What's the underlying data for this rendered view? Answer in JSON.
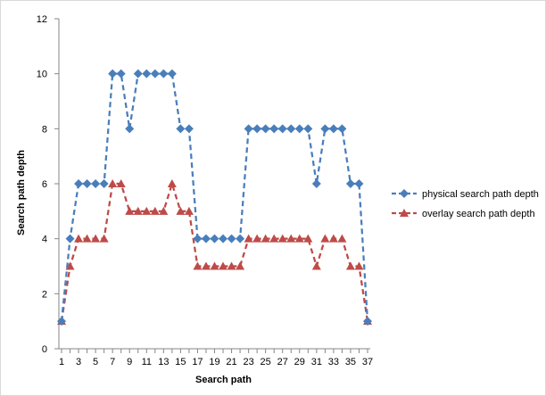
{
  "chart_data": {
    "type": "line",
    "title": "",
    "xlabel": "Search path",
    "ylabel": "Search path depth",
    "x": [
      1,
      2,
      3,
      4,
      5,
      6,
      7,
      8,
      9,
      10,
      11,
      12,
      13,
      14,
      15,
      16,
      17,
      18,
      19,
      20,
      21,
      22,
      23,
      24,
      25,
      26,
      27,
      28,
      29,
      30,
      31,
      32,
      33,
      34,
      35,
      36,
      37
    ],
    "xticks": [
      1,
      3,
      5,
      7,
      9,
      11,
      13,
      15,
      17,
      19,
      21,
      23,
      25,
      27,
      29,
      31,
      33,
      35,
      37
    ],
    "ylim": [
      0,
      12
    ],
    "yticks": [
      0,
      2,
      4,
      6,
      8,
      10,
      12
    ],
    "grid": false,
    "legend_position": "right",
    "series": [
      {
        "name": "physical search path depth",
        "color": "#4a7ebb",
        "marker": "diamond",
        "line_style": "dashed",
        "values": [
          1,
          4,
          6,
          6,
          6,
          6,
          10,
          10,
          8,
          10,
          10,
          10,
          10,
          10,
          8,
          8,
          4,
          4,
          4,
          4,
          4,
          4,
          8,
          8,
          8,
          8,
          8,
          8,
          8,
          8,
          6,
          8,
          8,
          8,
          6,
          6,
          1
        ]
      },
      {
        "name": "overlay search path depth",
        "color": "#be4b48",
        "marker": "triangle",
        "line_style": "dashed",
        "values": [
          1,
          3,
          4,
          4,
          4,
          4,
          6,
          6,
          5,
          5,
          5,
          5,
          5,
          6,
          5,
          5,
          3,
          3,
          3,
          3,
          3,
          3,
          4,
          4,
          4,
          4,
          4,
          4,
          4,
          4,
          3,
          4,
          4,
          4,
          3,
          3,
          1
        ]
      }
    ]
  }
}
